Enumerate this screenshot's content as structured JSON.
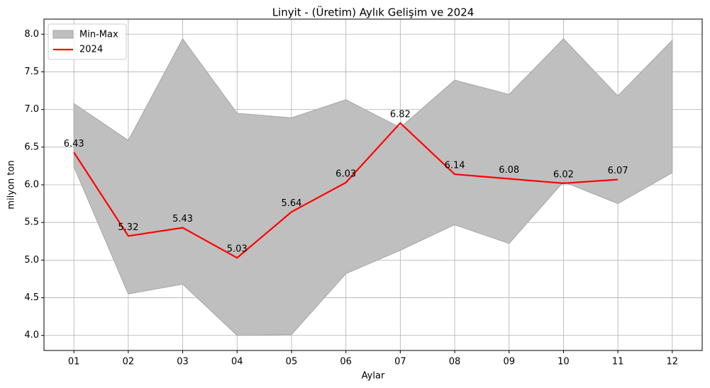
{
  "chart_data": {
    "type": "line",
    "title": "Linyit - (Üretim) Aylık Gelişim ve 2024",
    "xlabel": "Aylar",
    "ylabel": "milyon ton",
    "categories": [
      "01",
      "02",
      "03",
      "04",
      "05",
      "06",
      "07",
      "08",
      "09",
      "10",
      "11",
      "12"
    ],
    "band": {
      "name": "Min-Max",
      "color": "#bfbfbf",
      "edge": "#a6a6a6",
      "max": [
        7.08,
        6.59,
        7.94,
        6.95,
        6.89,
        7.13,
        6.76,
        7.39,
        7.2,
        7.94,
        7.18,
        7.92
      ],
      "min": [
        6.24,
        4.55,
        4.68,
        4.0,
        4.01,
        4.82,
        5.13,
        5.47,
        5.22,
        6.04,
        5.75,
        6.16
      ]
    },
    "series": [
      {
        "name": "2024",
        "color": "#ff0000",
        "values": [
          6.43,
          5.32,
          5.43,
          5.03,
          5.64,
          6.03,
          6.82,
          6.14,
          6.08,
          6.02,
          6.07,
          null
        ]
      }
    ],
    "ylim": [
      3.8,
      8.2
    ],
    "yticks": [
      {
        "value": 4,
        "label": "4.0"
      },
      4.5,
      {
        "value": 5,
        "label": "5.0"
      },
      5.5,
      {
        "value": 6,
        "label": "6.0"
      },
      6.5,
      {
        "value": 7,
        "label": "7.0"
      },
      7.5,
      {
        "value": 8,
        "label": "8.0"
      }
    ],
    "grid": true,
    "legend": "upper left"
  }
}
